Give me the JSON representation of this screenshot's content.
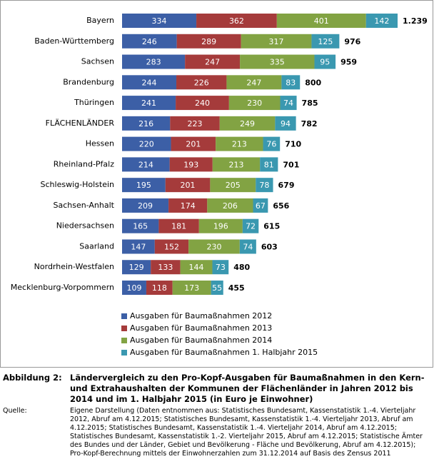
{
  "chart_data": {
    "type": "stacked-bar-horizontal",
    "categories": [
      "Bayern",
      "Baden-Württemberg",
      "Sachsen",
      "Brandenburg",
      "Thüringen",
      "FLÄCHENLÄNDER",
      "Hessen",
      "Rheinland-Pfalz",
      "Schleswig-Holstein",
      "Sachsen-Anhalt",
      "Niedersachsen",
      "Saarland",
      "Nordrhein-Westfalen",
      "Mecklenburg-Vorpommern"
    ],
    "series": [
      {
        "name": "Ausgaben für Baumaßnahmen 2012",
        "color": "#3c5fa6",
        "values": [
          334,
          246,
          283,
          244,
          241,
          216,
          220,
          214,
          195,
          209,
          165,
          147,
          129,
          109
        ]
      },
      {
        "name": "Ausgaben für Baumaßnahmen 2013",
        "color": "#a53b3b",
        "values": [
          362,
          289,
          247,
          226,
          240,
          223,
          201,
          193,
          201,
          174,
          181,
          152,
          133,
          118
        ]
      },
      {
        "name": "Ausgaben für Baumaßnahmen 2014",
        "color": "#82a343",
        "values": [
          401,
          317,
          335,
          247,
          230,
          249,
          213,
          213,
          205,
          206,
          196,
          230,
          144,
          173
        ]
      },
      {
        "name": "Ausgaben für Baumaßnahmen 1. Halbjahr 2015",
        "color": "#3a98b0",
        "values": [
          142,
          125,
          95,
          83,
          74,
          94,
          76,
          81,
          78,
          67,
          72,
          74,
          73,
          55
        ]
      }
    ],
    "totals": [
      {
        "value": 1239,
        "label": "1.239"
      },
      976,
      959,
      800,
      785,
      782,
      710,
      701,
      679,
      656,
      615,
      603,
      480,
      455
    ]
  },
  "caption": {
    "label": "Abbildung 2:",
    "text": "Ländervergleich zu den Pro-Kopf-Ausgaben für Baumaßnahmen in den Kern- und Extrahaushalten der Kommunen der Flächenländer in Jahren 2012 bis 2014 und im 1. Halbjahr 2015 (in Euro je Einwohner)"
  },
  "source": {
    "label": "Quelle:",
    "text": "Eigene Darstellung (Daten entnommen aus: Statistisches Bundesamt, Kassenstatistik 1.-4. Vierteljahr 2012, Abruf am 4.12.2015; Statistisches Bundesamt, Kassenstatistik 1.-4. Vierteljahr 2013, Abruf am 4.12.2015; Statistisches Bundesamt, Kassenstatistik 1.-4. Vierteljahr 2014, Abruf am 4.12.2015; Statistisches Bundesamt, Kassenstatistik 1.-2. Vierteljahr 2015, Abruf am 4.12.2015; Statistische Ämter des Bundes und der Länder, Gebiet und Bevölkerung - Fläche und Bevölkerung, Abruf am 4.12.2015); Pro-Kopf-Berechnung mittels der Einwohnerzahlen zum 31.12.2014 auf Basis des Zensus 2011"
  }
}
